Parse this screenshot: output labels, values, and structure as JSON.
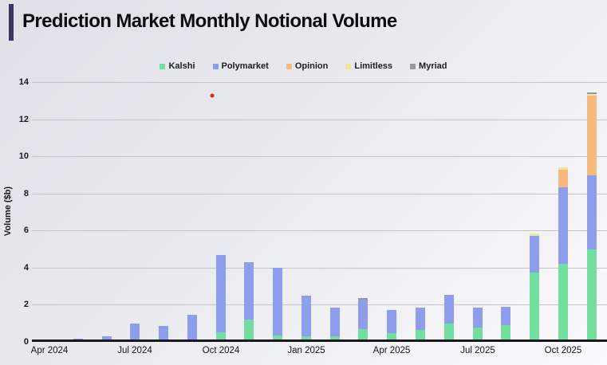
{
  "header": {
    "title": "Prediction Market Monthly Notional Volume"
  },
  "legend": {
    "items": [
      {
        "label": "Kalshi",
        "color": "#72dfa0"
      },
      {
        "label": "Polymarket",
        "color": "#8f9ded"
      },
      {
        "label": "Opinion",
        "color": "#f6b97e"
      },
      {
        "label": "Limitless",
        "color": "#ece6a0"
      },
      {
        "label": "Myriad",
        "color": "#98979f"
      }
    ]
  },
  "chart_data": {
    "type": "bar",
    "stacked": true,
    "title": "Prediction Market Monthly Notional Volume",
    "xlabel": "",
    "ylabel": "Volume ($b)",
    "ylim": [
      0,
      14
    ],
    "ytick_step": 2,
    "grid": true,
    "legend_position": "top",
    "categories": [
      "Apr 2024",
      "May 2024",
      "Jun 2024",
      "Jul 2024",
      "Aug 2024",
      "Sep 2024",
      "Oct 2024",
      "Nov 2024",
      "Dec 2024",
      "Jan 2025",
      "Feb 2025",
      "Mar 2025",
      "Apr 2025",
      "May 2025",
      "Jun 2025",
      "Jul 2025",
      "Aug 2025",
      "Sep 2025",
      "Oct 2025",
      "Nov 2025"
    ],
    "visible_xticks": [
      {
        "label": "Apr 2024",
        "month_index": 0
      },
      {
        "label": "Jul 2024",
        "month_index": 3
      },
      {
        "label": "Oct 2024",
        "month_index": 6
      },
      {
        "label": "Jan 2025",
        "month_index": 9
      },
      {
        "label": "Apr 2025",
        "month_index": 12
      },
      {
        "label": "Jul 2025",
        "month_index": 15
      },
      {
        "label": "Oct 2025",
        "month_index": 18
      }
    ],
    "series": [
      {
        "name": "Kalshi",
        "color": "#72dfa0",
        "values": [
          0,
          0,
          0,
          0,
          0,
          0,
          0.45,
          1.1,
          0.25,
          0.2,
          0.2,
          0.6,
          0.4,
          0.58,
          0.92,
          0.7,
          0.83,
          3.65,
          4.15,
          4.9
        ]
      },
      {
        "name": "Polymarket",
        "color": "#8f9ded",
        "values": [
          0.05,
          0.1,
          0.2,
          0.9,
          0.78,
          1.4,
          4.15,
          3.1,
          3.65,
          2.2,
          1.55,
          1.6,
          1.25,
          1.2,
          1.53,
          1.05,
          0.97,
          2.0,
          4.1,
          4.0
        ]
      },
      {
        "name": "Opinion",
        "color": "#f6b97e",
        "values": [
          0,
          0,
          0,
          0,
          0,
          0,
          0,
          0,
          0,
          0,
          0,
          0,
          0,
          0,
          0,
          0,
          0,
          0,
          0.95,
          4.3
        ]
      },
      {
        "name": "Limitless",
        "color": "#ece6a0",
        "values": [
          0,
          0,
          0,
          0,
          0,
          0,
          0,
          0,
          0,
          0,
          0,
          0,
          0,
          0,
          0,
          0,
          0,
          0.1,
          0.15,
          0.1
        ]
      },
      {
        "name": "Myriad",
        "color": "#98979f",
        "values": [
          0,
          0,
          0,
          0,
          0,
          0,
          0,
          0,
          0,
          0,
          0,
          0.1,
          0,
          0,
          0,
          0,
          0,
          0,
          0,
          0.1
        ]
      }
    ],
    "annotations": [
      {
        "type": "point",
        "shape": "dot",
        "color": "#e02420",
        "month_index": 5.7,
        "value": 13.25
      }
    ]
  }
}
